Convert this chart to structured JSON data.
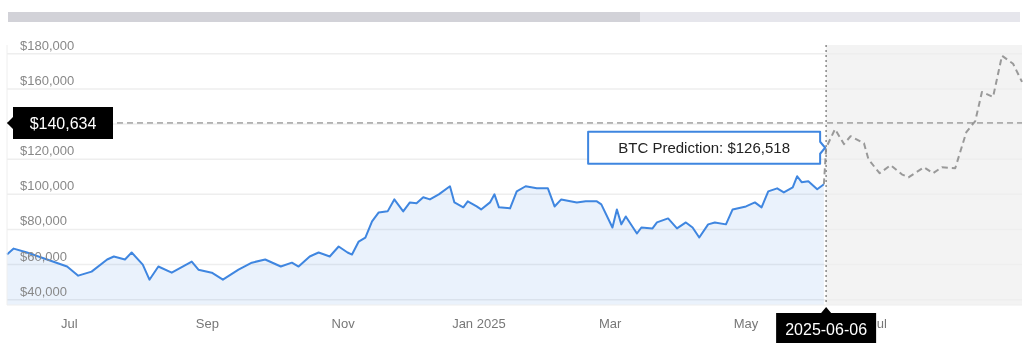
{
  "chart_data": {
    "type": "area",
    "xlim": [
      "2024-06-03",
      "2025-09-02"
    ],
    "xticks": [
      {
        "value": "2024-07-01",
        "label": "Jul"
      },
      {
        "value": "2024-09-01",
        "label": "Sep"
      },
      {
        "value": "2024-11-01",
        "label": "Nov"
      },
      {
        "value": "2025-01-01",
        "label": "Jan 2025"
      },
      {
        "value": "2025-03-01",
        "label": "Mar"
      },
      {
        "value": "2025-05-01",
        "label": "May"
      },
      {
        "value": "2025-07-01",
        "label": "ul"
      }
    ],
    "ylim": [
      37000,
      185000
    ],
    "yticks": [
      {
        "value": 40000,
        "label": "$40,000"
      },
      {
        "value": 60000,
        "label": "$60,000"
      },
      {
        "value": 80000,
        "label": "$80,000"
      },
      {
        "value": 100000,
        "label": "$100,000"
      },
      {
        "value": 120000,
        "label": "$120,000"
      },
      {
        "value": 140000,
        "label": null
      },
      {
        "value": 160000,
        "label": "$160,000"
      },
      {
        "value": 180000,
        "label": "$180,000"
      }
    ],
    "grid": "y",
    "series": [
      {
        "color": "#3f86e0",
        "line_style": "solid",
        "x": [
          "2024-06-03",
          "2024-06-06",
          "2024-06-12",
          "2024-06-21",
          "2024-06-30",
          "2024-07-05",
          "2024-07-11",
          "2024-07-18",
          "2024-07-21",
          "2024-07-26",
          "2024-07-29",
          "2024-08-03",
          "2024-08-06",
          "2024-08-10",
          "2024-08-16",
          "2024-08-25",
          "2024-08-28",
          "2024-09-03",
          "2024-09-08",
          "2024-09-15",
          "2024-09-21",
          "2024-09-27",
          "2024-10-04",
          "2024-10-09",
          "2024-10-12",
          "2024-10-17",
          "2024-10-21",
          "2024-10-26",
          "2024-10-30",
          "2024-11-03",
          "2024-11-05",
          "2024-11-08",
          "2024-11-11",
          "2024-11-14",
          "2024-11-17",
          "2024-11-21",
          "2024-11-24",
          "2024-11-28",
          "2024-12-01",
          "2024-12-04",
          "2024-12-07",
          "2024-12-10",
          "2024-12-14",
          "2024-12-19",
          "2024-12-21",
          "2024-12-25",
          "2024-12-27",
          "2024-12-31",
          "2025-01-02",
          "2025-01-06",
          "2025-01-08",
          "2025-01-10",
          "2025-01-15",
          "2025-01-18",
          "2025-01-22",
          "2025-01-27",
          "2025-02-01",
          "2025-02-04",
          "2025-02-07",
          "2025-02-14",
          "2025-02-18",
          "2025-02-23",
          "2025-02-25",
          "2025-03-02",
          "2025-03-04",
          "2025-03-06",
          "2025-03-08",
          "2025-03-13",
          "2025-03-15",
          "2025-03-20",
          "2025-03-22",
          "2025-03-27",
          "2025-03-31",
          "2025-04-04",
          "2025-04-07",
          "2025-04-10",
          "2025-04-14",
          "2025-04-17",
          "2025-04-22",
          "2025-04-25",
          "2025-05-01",
          "2025-05-05",
          "2025-05-08",
          "2025-05-11",
          "2025-05-15",
          "2025-05-18",
          "2025-05-22",
          "2025-05-24",
          "2025-05-26",
          "2025-05-29",
          "2025-06-02",
          "2025-06-05"
        ],
        "values": [
          65700,
          69100,
          66900,
          62900,
          58900,
          53700,
          56000,
          62900,
          64600,
          62900,
          66900,
          60000,
          51400,
          58900,
          55400,
          61700,
          57100,
          55400,
          51400,
          57100,
          61100,
          62900,
          58900,
          61100,
          58900,
          64600,
          66900,
          64600,
          70300,
          66900,
          65700,
          73100,
          75400,
          84600,
          89700,
          90300,
          97100,
          90300,
          95400,
          94900,
          98300,
          97100,
          100000,
          104600,
          95400,
          92600,
          96000,
          93100,
          91400,
          95400,
          100000,
          92600,
          92000,
          101700,
          104600,
          103400,
          103400,
          93100,
          97100,
          95400,
          96000,
          96000,
          94300,
          81100,
          91400,
          82900,
          87400,
          77700,
          81100,
          80600,
          84000,
          86300,
          80600,
          84000,
          81100,
          75400,
          82900,
          84000,
          82900,
          91400,
          93100,
          95400,
          92600,
          101700,
          103400,
          101100,
          104000,
          110300,
          106900,
          107400,
          102900,
          105700
        ]
      },
      {
        "type": "line",
        "color": "#999999",
        "line_style": "dashed",
        "x": [
          "2025-06-05",
          "2025-06-06",
          "2025-06-10",
          "2025-06-14",
          "2025-06-17",
          "2025-06-23",
          "2025-06-25",
          "2025-06-30",
          "2025-07-05",
          "2025-07-10",
          "2025-07-13",
          "2025-07-20",
          "2025-07-24",
          "2025-07-28",
          "2025-08-03",
          "2025-08-08",
          "2025-08-12",
          "2025-08-15",
          "2025-08-20",
          "2025-08-24",
          "2025-08-29",
          "2025-09-02"
        ],
        "values": [
          105700,
          126518,
          137100,
          128600,
          133100,
          129100,
          120000,
          112000,
          116600,
          111400,
          109700,
          115400,
          112000,
          115400,
          114900,
          135400,
          141700,
          158300,
          155400,
          178900,
          174300,
          164000
        ]
      }
    ],
    "bands": [
      {
        "axis": "x",
        "from": "2025-06-06",
        "to": "2025-09-02",
        "color": "#f3f3f3"
      }
    ],
    "ref_lines": [
      {
        "axis": "y",
        "value": 140634,
        "label": "$140,634",
        "line_style": "dashed"
      },
      {
        "axis": "x",
        "value": "2025-06-06",
        "label": "2025-06-06",
        "line_style": "dotted"
      }
    ],
    "annotations": [
      {
        "text": "BTC Prediction: $126,518",
        "x": "2025-06-06",
        "y": 126518
      }
    ]
  }
}
